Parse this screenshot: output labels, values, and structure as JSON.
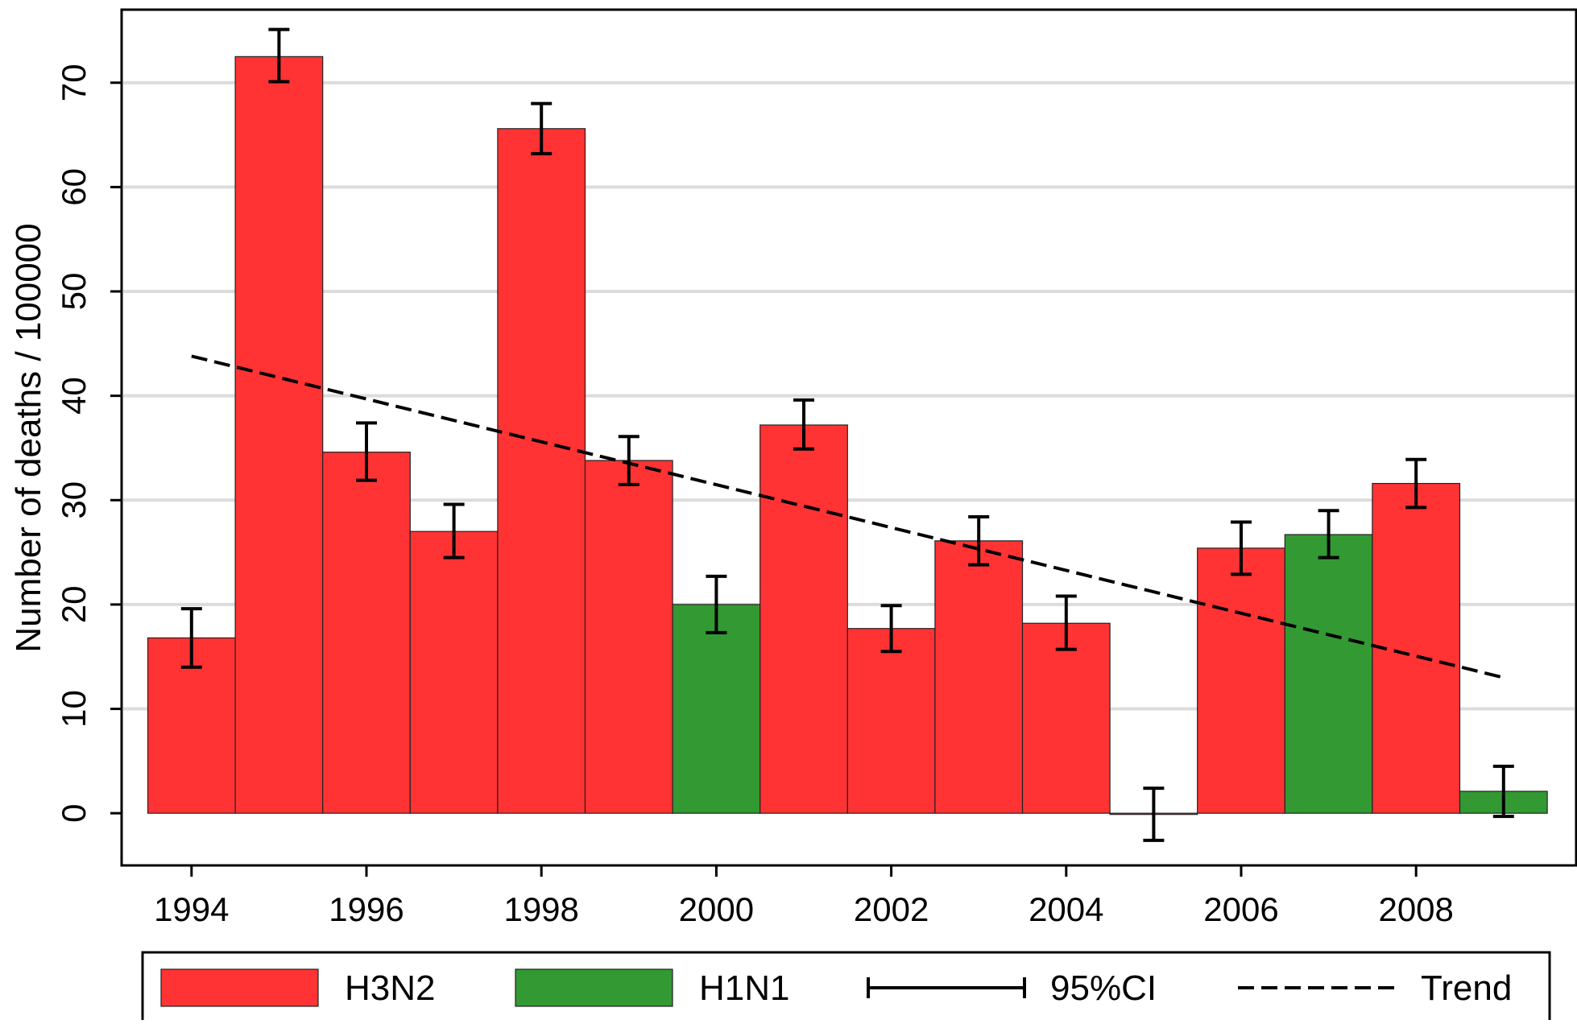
{
  "chart_data": {
    "type": "bar",
    "title": "",
    "xlabel": "",
    "ylabel": "Number of deaths / 100000",
    "ylim": [
      -5,
      77
    ],
    "xlim": [
      1993.5,
      1009.5
    ],
    "yticks": [
      0,
      10,
      20,
      30,
      40,
      50,
      60,
      70
    ],
    "xticks": [
      1994,
      1996,
      1998,
      2000,
      2002,
      2004,
      2006,
      2008
    ],
    "grid": "horizontal",
    "legend_position": "bottom",
    "years": [
      1994,
      1995,
      1996,
      1997,
      1998,
      1999,
      2000,
      2001,
      2002,
      2003,
      2004,
      2005,
      2006,
      2007,
      2008,
      2009
    ],
    "values": [
      16.8,
      72.5,
      34.6,
      27.0,
      65.6,
      33.8,
      20.0,
      37.2,
      17.7,
      26.1,
      18.2,
      -0.1,
      25.4,
      26.7,
      31.6,
      2.1
    ],
    "ci_lower": [
      14.0,
      70.1,
      31.9,
      24.5,
      63.2,
      31.5,
      17.3,
      34.9,
      15.5,
      23.8,
      15.7,
      -2.6,
      22.9,
      24.5,
      29.3,
      -0.3
    ],
    "ci_upper": [
      19.6,
      75.1,
      37.4,
      29.6,
      68.0,
      36.1,
      22.7,
      39.6,
      19.9,
      28.4,
      20.8,
      2.4,
      27.9,
      29.0,
      33.9,
      4.5
    ],
    "subtype": [
      "H3N2",
      "H3N2",
      "H3N2",
      "H3N2",
      "H3N2",
      "H3N2",
      "H1N1",
      "H3N2",
      "H3N2",
      "H3N2",
      "H3N2",
      "H3N2",
      "H3N2",
      "H1N1",
      "H3N2",
      "H1N1"
    ],
    "trend": {
      "x": [
        1994,
        2009
      ],
      "y": [
        43.8,
        13.0
      ]
    },
    "legend": [
      {
        "key": "H3N2",
        "label": "H3N2",
        "kind": "bar"
      },
      {
        "key": "H1N1",
        "label": "H1N1",
        "kind": "bar"
      },
      {
        "key": "ci",
        "label": "95%CI",
        "kind": "errorbar"
      },
      {
        "key": "trend",
        "label": "Trend",
        "kind": "dashed-line"
      }
    ],
    "colors": {
      "H3N2": "#ff3333",
      "H1N1": "#339933",
      "ci": "#000000",
      "trend": "#000000",
      "grid": "#dcdcdc"
    }
  }
}
